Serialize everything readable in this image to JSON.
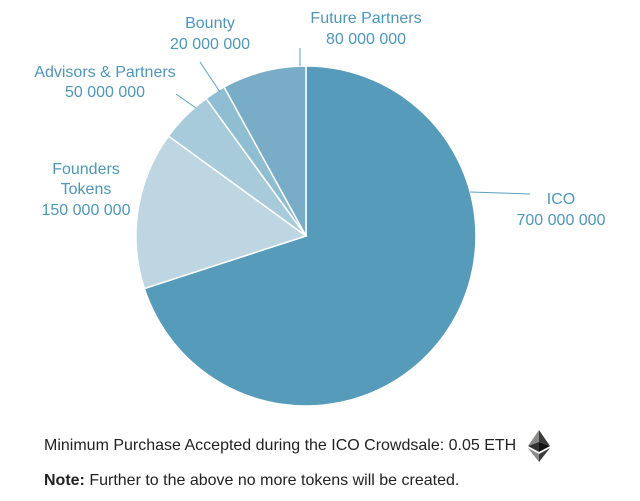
{
  "chart_data": {
    "type": "pie",
    "title": "",
    "start_angle_deg": 0,
    "slices": [
      {
        "label": "ICO",
        "value_text": "700 000 000",
        "value": 700000000,
        "color": "#569cba"
      },
      {
        "label": "Founders Tokens",
        "label_lines": [
          "Founders",
          "Tokens"
        ],
        "value_text": "150 000 000",
        "value": 150000000,
        "color": "#bdd6e2"
      },
      {
        "label": "Advisors & Partners",
        "label_lines": [
          "Advisors & Partners"
        ],
        "value_text": "50 000 000",
        "value": 50000000,
        "color": "#a8cbdb"
      },
      {
        "label": "Bounty",
        "label_lines": [
          "Bounty"
        ],
        "value_text": "20 000 000",
        "value": 20000000,
        "color": "#8fbdd2"
      },
      {
        "label": "Future Partners",
        "label_lines": [
          "Future Partners"
        ],
        "value_text": "80 000 000",
        "value": 80000000,
        "color": "#79adc7"
      }
    ]
  },
  "footer": {
    "min_purchase": "Minimum Purchase Accepted during the ICO Crowdsale: 0.05 ETH",
    "eth_icon": "ethereum-icon",
    "note_label": "Note:",
    "note_text": " Further to the above no more tokens will be created."
  }
}
